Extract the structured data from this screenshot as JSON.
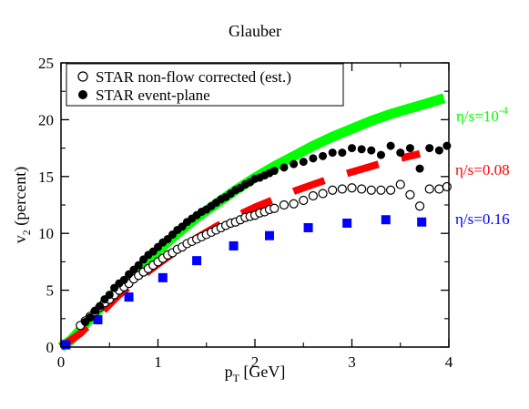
{
  "chart_data": {
    "type": "line",
    "title": "Glauber",
    "xlabel": "p",
    "xlabel_sub": "T",
    "xlabel_unit": " [GeV]",
    "ylabel": "v",
    "ylabel_sub": "2",
    "ylabel_unit": " (percent)",
    "xlim": [
      0,
      4
    ],
    "ylim": [
      0,
      25
    ],
    "x_ticks": [
      0,
      1,
      2,
      3,
      4
    ],
    "y_ticks": [
      0,
      5,
      10,
      15,
      20,
      25
    ],
    "grid": false,
    "legend_position": "top-left",
    "legend": [
      {
        "label": "STAR non-flow corrected (est.)",
        "marker": "open-circle"
      },
      {
        "label": "STAR event-plane",
        "marker": "filled-circle"
      }
    ],
    "series": [
      {
        "name_parts": [
          "η/s=10",
          "-4"
        ],
        "name_color": "#00ff00",
        "style": "solid",
        "color": "#00ff00",
        "x": [
          0.0,
          0.1,
          0.2,
          0.3,
          0.4,
          0.5,
          0.6,
          0.8,
          1.0,
          1.2,
          1.4,
          1.6,
          1.8,
          2.0,
          2.2,
          2.4,
          2.6,
          2.8,
          3.0,
          3.2,
          3.4,
          3.6,
          3.8,
          3.95
        ],
        "y": [
          0.0,
          0.6,
          1.5,
          2.5,
          3.4,
          4.3,
          5.2,
          6.9,
          8.5,
          10.0,
          11.4,
          12.6,
          13.8,
          14.9,
          15.9,
          16.8,
          17.7,
          18.5,
          19.2,
          19.9,
          20.5,
          21.0,
          21.5,
          21.9
        ]
      },
      {
        "name_parts": [
          "η/s=0.08",
          ""
        ],
        "name_color": "#ff0000",
        "style": "dashed",
        "color": "#ff0000",
        "x": [
          0.0,
          0.2,
          0.4,
          0.6,
          0.8,
          1.0,
          1.2,
          1.4,
          1.6,
          1.8,
          2.0,
          2.2,
          2.4,
          2.6,
          2.8,
          3.0,
          3.2,
          3.4,
          3.6,
          3.7
        ],
        "y": [
          0.0,
          1.2,
          2.9,
          4.6,
          6.0,
          7.3,
          8.5,
          9.6,
          10.6,
          11.5,
          12.3,
          13.0,
          13.7,
          14.3,
          14.9,
          15.4,
          15.9,
          16.4,
          16.8,
          17.0
        ]
      },
      {
        "name_parts": [
          "η/s=0.16",
          ""
        ],
        "name_color": "#0000ff",
        "style": "dotted",
        "color": "#0000ff",
        "x": [
          0.05,
          0.38,
          0.7,
          1.05,
          1.4,
          1.78,
          2.15,
          2.55,
          2.95,
          3.35,
          3.72
        ],
        "y": [
          0.2,
          2.4,
          4.4,
          6.1,
          7.6,
          8.9,
          9.8,
          10.5,
          10.9,
          11.2,
          11.0
        ]
      }
    ],
    "scatter_series": [
      {
        "legend_index": 0,
        "marker": "open-circle",
        "x": [
          0.2,
          0.25,
          0.3,
          0.35,
          0.4,
          0.45,
          0.5,
          0.55,
          0.6,
          0.65,
          0.7,
          0.75,
          0.8,
          0.85,
          0.9,
          0.95,
          1.0,
          1.05,
          1.1,
          1.15,
          1.2,
          1.25,
          1.3,
          1.35,
          1.4,
          1.45,
          1.5,
          1.55,
          1.6,
          1.65,
          1.7,
          1.75,
          1.8,
          1.85,
          1.9,
          1.95,
          2.0,
          2.05,
          2.1,
          2.15,
          2.2,
          2.3,
          2.4,
          2.5,
          2.6,
          2.7,
          2.8,
          2.9,
          3.0,
          3.1,
          3.2,
          3.3,
          3.4,
          3.5,
          3.6,
          3.7,
          3.8,
          3.9,
          3.98
        ],
        "y": [
          1.9,
          2.3,
          2.7,
          3.1,
          3.5,
          3.9,
          4.2,
          4.6,
          5.0,
          5.3,
          5.6,
          6.0,
          6.3,
          6.6,
          6.9,
          7.2,
          7.5,
          7.8,
          8.1,
          8.3,
          8.6,
          8.8,
          9.1,
          9.3,
          9.5,
          9.7,
          9.9,
          10.1,
          10.3,
          10.5,
          10.7,
          10.9,
          11.0,
          11.2,
          11.4,
          11.5,
          11.6,
          11.8,
          11.9,
          12.1,
          12.2,
          12.5,
          12.6,
          12.9,
          13.3,
          13.5,
          13.8,
          13.9,
          14.0,
          13.9,
          13.8,
          13.8,
          13.8,
          14.3,
          13.4,
          12.4,
          13.9,
          13.9,
          14.1
        ]
      },
      {
        "legend_index": 1,
        "marker": "filled-circle",
        "x": [
          0.25,
          0.3,
          0.35,
          0.4,
          0.45,
          0.5,
          0.55,
          0.6,
          0.65,
          0.7,
          0.75,
          0.8,
          0.85,
          0.9,
          0.95,
          1.0,
          1.05,
          1.1,
          1.15,
          1.2,
          1.25,
          1.3,
          1.35,
          1.4,
          1.45,
          1.5,
          1.55,
          1.6,
          1.65,
          1.7,
          1.75,
          1.8,
          1.85,
          1.9,
          1.95,
          2.0,
          2.05,
          2.1,
          2.15,
          2.2,
          2.3,
          2.4,
          2.5,
          2.6,
          2.7,
          2.8,
          2.9,
          3.0,
          3.1,
          3.2,
          3.3,
          3.4,
          3.5,
          3.6,
          3.7,
          3.8,
          3.9,
          3.98
        ],
        "y": [
          2.2,
          2.6,
          3.2,
          3.6,
          4.2,
          4.6,
          5.2,
          5.6,
          5.9,
          6.4,
          6.8,
          7.2,
          7.7,
          8.1,
          8.4,
          8.8,
          9.2,
          9.5,
          9.9,
          10.3,
          10.6,
          11.0,
          11.3,
          11.6,
          11.9,
          12.1,
          12.4,
          12.7,
          13.0,
          13.2,
          13.5,
          13.8,
          14.0,
          14.3,
          14.5,
          14.8,
          14.9,
          15.1,
          15.3,
          15.5,
          15.8,
          16.1,
          16.3,
          16.6,
          16.8,
          17.1,
          17.1,
          17.5,
          17.4,
          17.3,
          16.9,
          17.7,
          17.1,
          17.5,
          15.7,
          17.5,
          17.3,
          17.7
        ]
      }
    ],
    "colors": {
      "green": "#00ff00",
      "red": "#ff0000",
      "blue": "#0000ff",
      "markers": "#000000"
    }
  }
}
